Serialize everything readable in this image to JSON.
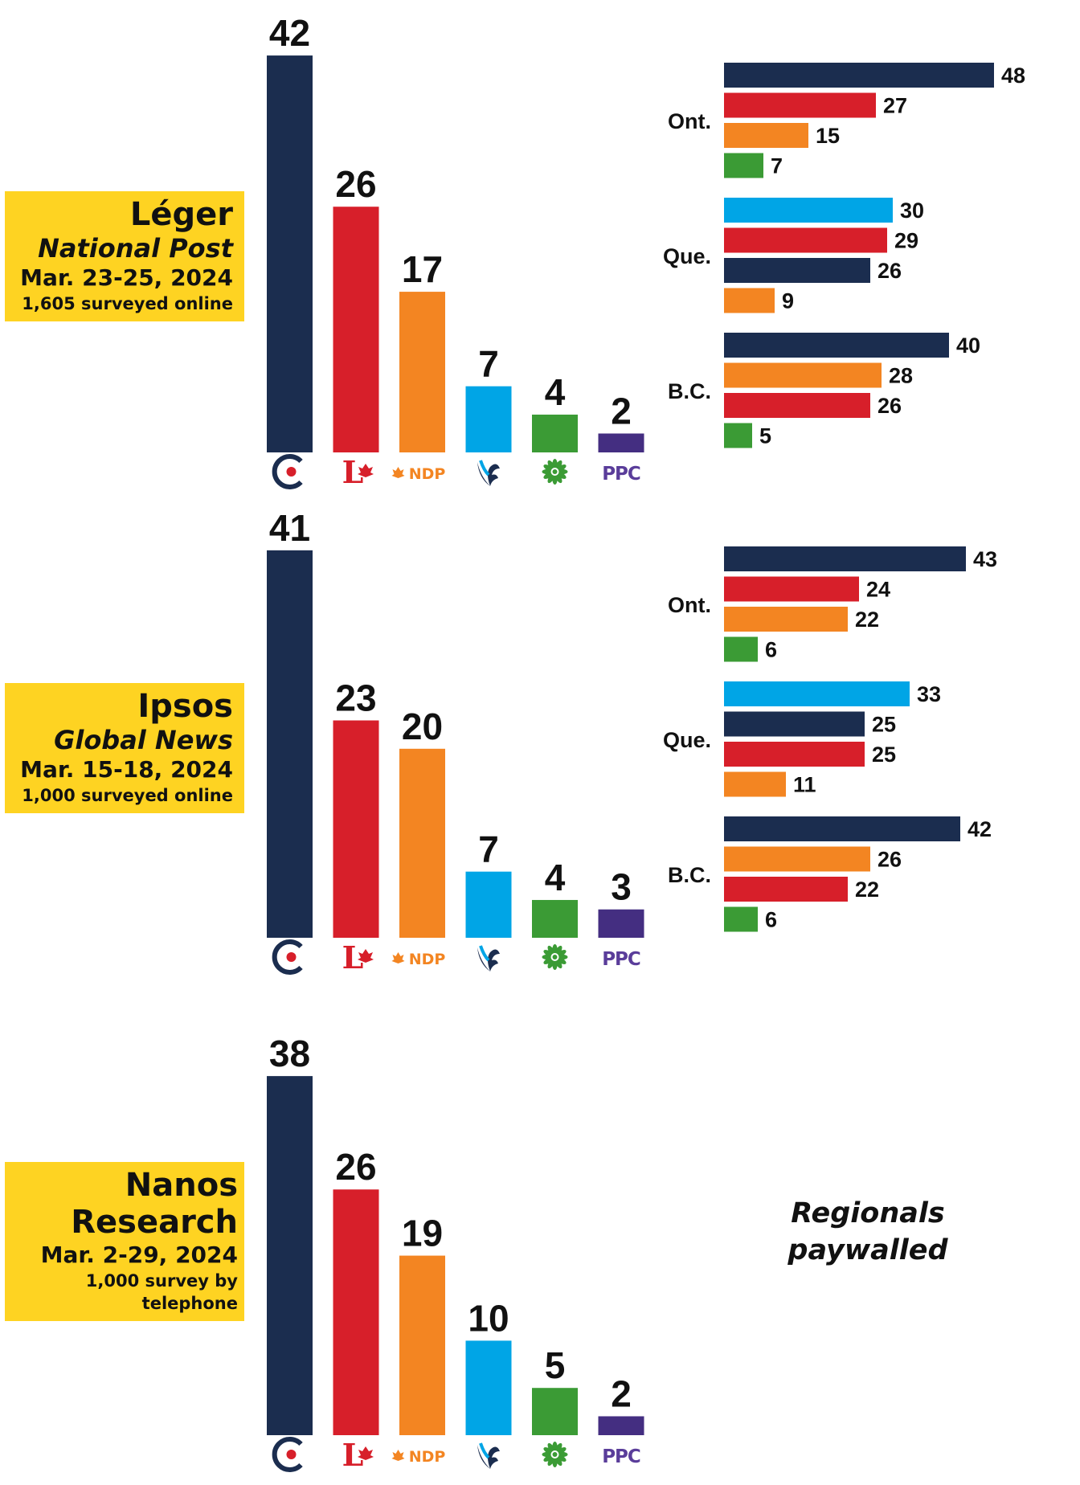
{
  "colors": {
    "CPC": "#1b2d4f",
    "LPC": "#d71f2a",
    "NDP": "#f38522",
    "BQ": "#00a5e6",
    "GPC": "#3b9b35",
    "PPC": "#442e81"
  },
  "party_logos": [
    {
      "party": "CPC",
      "icon": "cpc-logo-icon"
    },
    {
      "party": "LPC",
      "icon": "lpc-logo-icon",
      "text": "L"
    },
    {
      "party": "NDP",
      "icon": "ndp-logo-icon",
      "text": "NDP"
    },
    {
      "party": "BQ",
      "icon": "bq-logo-icon"
    },
    {
      "party": "GPC",
      "icon": "gpc-logo-icon"
    },
    {
      "party": "PPC",
      "icon": "ppc-logo-icon",
      "text": "PPC"
    }
  ],
  "regionals_note": {
    "line1": "Regionals",
    "line2": "paywalled"
  },
  "chart_data": [
    {
      "type": "bar",
      "pollster": "Léger",
      "sponsor": "National Post",
      "dates": "Mar. 23-25, 2024",
      "sample": "1,605 surveyed online",
      "categories": [
        "CPC",
        "LPC",
        "NDP",
        "BQ",
        "GPC",
        "PPC"
      ],
      "values": [
        42,
        26,
        17,
        7,
        4,
        2
      ],
      "regions": [
        {
          "name": "Ont.",
          "bars": [
            {
              "party": "CPC",
              "value": 48
            },
            {
              "party": "LPC",
              "value": 27
            },
            {
              "party": "NDP",
              "value": 15
            },
            {
              "party": "GPC",
              "value": 7
            }
          ]
        },
        {
          "name": "Que.",
          "bars": [
            {
              "party": "BQ",
              "value": 30
            },
            {
              "party": "LPC",
              "value": 29
            },
            {
              "party": "CPC",
              "value": 26
            },
            {
              "party": "NDP",
              "value": 9
            }
          ]
        },
        {
          "name": "B.C.",
          "bars": [
            {
              "party": "CPC",
              "value": 40
            },
            {
              "party": "NDP",
              "value": 28
            },
            {
              "party": "LPC",
              "value": 26
            },
            {
              "party": "GPC",
              "value": 5
            }
          ]
        }
      ]
    },
    {
      "type": "bar",
      "pollster": "Ipsos",
      "sponsor": "Global News",
      "dates": "Mar. 15-18, 2024",
      "sample": "1,000 surveyed online",
      "categories": [
        "CPC",
        "LPC",
        "NDP",
        "BQ",
        "GPC",
        "PPC"
      ],
      "values": [
        41,
        23,
        20,
        7,
        4,
        3
      ],
      "regions": [
        {
          "name": "Ont.",
          "bars": [
            {
              "party": "CPC",
              "value": 43
            },
            {
              "party": "LPC",
              "value": 24
            },
            {
              "party": "NDP",
              "value": 22
            },
            {
              "party": "GPC",
              "value": 6
            }
          ]
        },
        {
          "name": "Que.",
          "bars": [
            {
              "party": "BQ",
              "value": 33
            },
            {
              "party": "CPC",
              "value": 25
            },
            {
              "party": "LPC",
              "value": 25
            },
            {
              "party": "NDP",
              "value": 11
            }
          ]
        },
        {
          "name": "B.C.",
          "bars": [
            {
              "party": "CPC",
              "value": 42
            },
            {
              "party": "NDP",
              "value": 26
            },
            {
              "party": "LPC",
              "value": 22
            },
            {
              "party": "GPC",
              "value": 6
            }
          ]
        }
      ]
    },
    {
      "type": "bar",
      "pollster": "Nanos Research",
      "pollster_lines": [
        "Nanos",
        "Research"
      ],
      "dates": "Mar. 2-29, 2024",
      "sample": "1,000 survey by telephone",
      "categories": [
        "CPC",
        "LPC",
        "NDP",
        "BQ",
        "GPC",
        "PPC"
      ],
      "values": [
        38,
        26,
        19,
        10,
        5,
        2
      ],
      "regions": []
    }
  ]
}
